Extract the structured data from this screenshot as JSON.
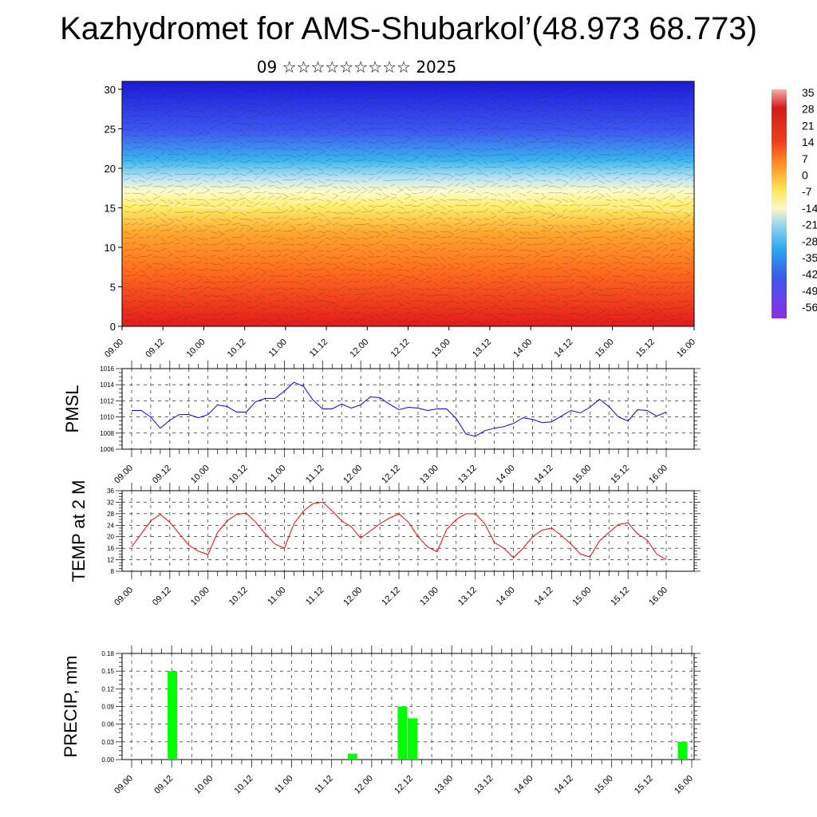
{
  "title": "Kazhydromet for AMS-Shubarkol’(48.973 68.773)",
  "subtitle": "09 ☆☆☆☆☆☆☆☆☆ 2025",
  "time_labels": [
    "09.00",
    "09.12",
    "10.00",
    "10.12",
    "11.00",
    "11.12",
    "12.00",
    "12.12",
    "13.00",
    "13.12",
    "14.00",
    "14.12",
    "15.00",
    "15.12",
    "16.00"
  ],
  "colorbar": {
    "labels": [
      "35",
      "28",
      "21",
      "14",
      "7",
      "0",
      "-7",
      "-14",
      "-21",
      "-28",
      "-35",
      "-42",
      "-49",
      "-56"
    ]
  },
  "chart_data": [
    {
      "type": "heatmap",
      "title": "",
      "ylabel": "",
      "ylim": [
        0,
        31
      ],
      "yticks": [
        0,
        5,
        10,
        15,
        20,
        25,
        30
      ],
      "x_ticks": [
        "09.00",
        "09.12",
        "10.00",
        "10.12",
        "11.00",
        "11.12",
        "12.00",
        "12.12",
        "13.00",
        "13.12",
        "14.00",
        "14.12",
        "15.00",
        "15.12",
        "16.00"
      ],
      "freezing_level": [
        16,
        15.5,
        15,
        15,
        15.5,
        16,
        16.5,
        17,
        17,
        16.5,
        16,
        15.5,
        15,
        15,
        14.5
      ],
      "colors": {
        "warm": "#e41a1c",
        "neutral": "#ffff80",
        "cold": "#1c1cd8"
      }
    },
    {
      "type": "line",
      "ylabel": "PMSL",
      "ylim": [
        1006,
        1016
      ],
      "yticks": [
        1006,
        1008,
        1010,
        1012,
        1014,
        1016
      ],
      "color": "#0000ff",
      "values": [
        1010.8,
        1010.8,
        1010.0,
        1008.6,
        1009.6,
        1010.3,
        1010.3,
        1009.9,
        1010.3,
        1011.5,
        1011.3,
        1010.6,
        1010.6,
        1011.9,
        1012.3,
        1012.3,
        1013.2,
        1014.3,
        1013.8,
        1012.1,
        1011.0,
        1011.0,
        1011.6,
        1011.1,
        1011.5,
        1012.5,
        1012.4,
        1011.6,
        1010.9,
        1011.2,
        1011.1,
        1010.8,
        1011.0,
        1011.0,
        1009.8,
        1007.9,
        1007.6,
        1008.3,
        1008.6,
        1008.8,
        1009.2,
        1009.9,
        1009.7,
        1009.3,
        1009.4,
        1010.1,
        1010.8,
        1010.5,
        1011.2,
        1012.2,
        1011.3,
        1010.0,
        1009.5,
        1010.9,
        1010.8,
        1010.1,
        1010.6
      ]
    },
    {
      "type": "line",
      "ylabel": "TEMP at 2 M",
      "ylim": [
        8,
        36
      ],
      "yticks": [
        8,
        12,
        16,
        20,
        24,
        28,
        32,
        36
      ],
      "color": "#ff0000",
      "values": [
        16.5,
        21,
        25.5,
        27.8,
        25,
        21,
        17,
        15,
        13.8,
        21.5,
        25.5,
        27.8,
        28.2,
        25,
        21,
        17.5,
        16,
        24.5,
        29,
        31.5,
        32,
        29,
        25.5,
        23.5,
        19.5,
        22,
        24.5,
        26.5,
        28,
        25,
        20,
        16.5,
        14.8,
        22.5,
        26,
        28,
        28,
        24.5,
        18,
        16,
        12.7,
        16,
        20,
        22.3,
        23,
        20.5,
        17.5,
        14,
        13,
        18.5,
        21.5,
        24.3,
        24.8,
        21,
        18.8,
        14,
        12
      ]
    },
    {
      "type": "bar",
      "ylabel": "PRECIP, mm",
      "ylim": [
        0,
        0.18
      ],
      "yticks": [
        "0.00",
        "0.03",
        "0.06",
        "0.09",
        "0.12",
        "0.15",
        "0.18"
      ],
      "color": "#00ff00",
      "bars": [
        {
          "x_hour": 12,
          "value": 0.15
        },
        {
          "x_hour": 66,
          "value": 0.01
        },
        {
          "x_hour": 81,
          "value": 0.09
        },
        {
          "x_hour": 84,
          "value": 0.07
        },
        {
          "x_hour": 165,
          "value": 0.03
        }
      ]
    }
  ]
}
